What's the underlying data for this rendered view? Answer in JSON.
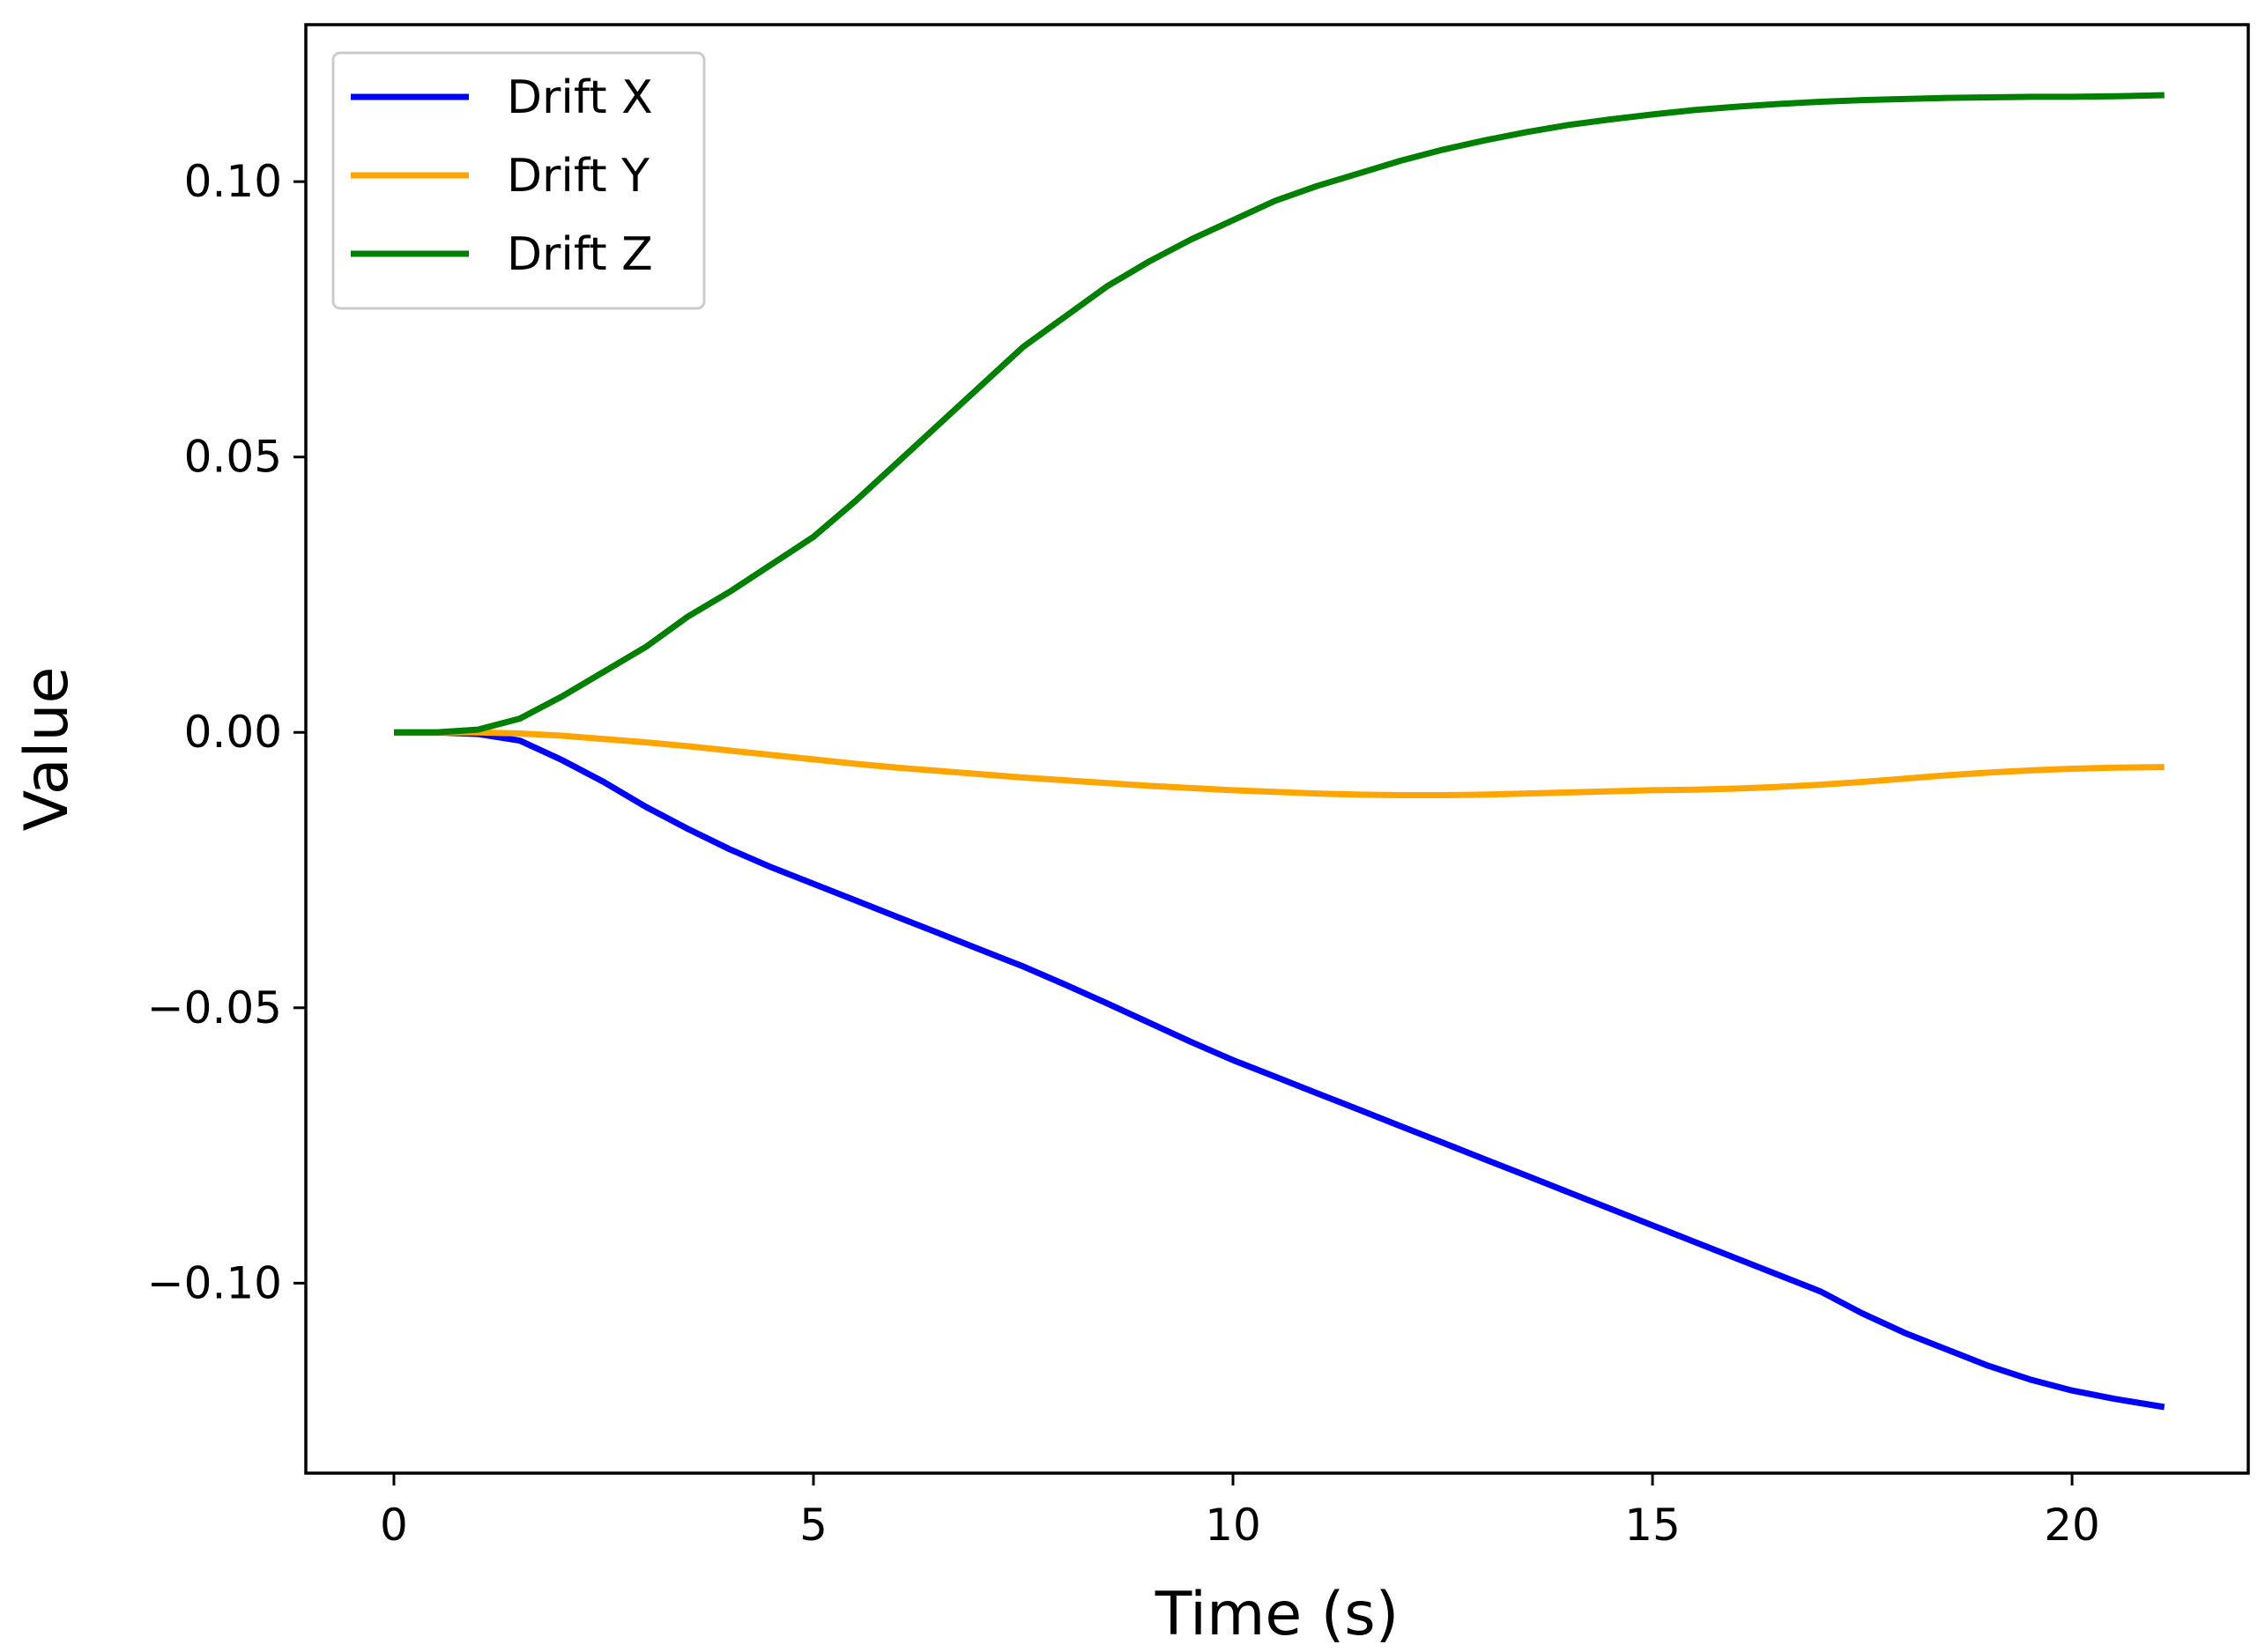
{
  "chart_data": {
    "type": "line",
    "title": "",
    "xlabel": "Time (s)",
    "ylabel": "Value",
    "xlim": [
      -1.05,
      22.1
    ],
    "ylim": [
      -0.1345,
      0.1285
    ],
    "grid": false,
    "legend_position": "top-left",
    "x_ticks": [
      0,
      5,
      10,
      15,
      20
    ],
    "x_tick_labels": [
      "0",
      "5",
      "10",
      "15",
      "20"
    ],
    "y_ticks": [
      -0.1,
      -0.05,
      0.0,
      0.05,
      0.1
    ],
    "y_tick_labels": [
      "−0.10",
      "−0.05",
      "0.00",
      "0.05",
      "0.10"
    ],
    "x": [
      0,
      0.5,
      1,
      1.5,
      2,
      2.5,
      3,
      3.5,
      4,
      4.5,
      5,
      5.5,
      6,
      6.5,
      7,
      7.5,
      8,
      8.5,
      9,
      9.5,
      10,
      10.5,
      11,
      11.5,
      12,
      12.5,
      13,
      13.5,
      14,
      14.5,
      15,
      15.5,
      16,
      16.5,
      17,
      17.5,
      18,
      18.5,
      19,
      19.5,
      20,
      20.5,
      21.1
    ],
    "series": [
      {
        "name": "Drift X",
        "color": "#0000ff",
        "values": [
          0,
          0,
          -0.0003,
          -0.0015,
          -0.005,
          -0.009,
          -0.0135,
          -0.0175,
          -0.0212,
          -0.0245,
          -0.0275,
          -0.0305,
          -0.0335,
          -0.0365,
          -0.0395,
          -0.0425,
          -0.0458,
          -0.0492,
          -0.0527,
          -0.0562,
          -0.0595,
          -0.0625,
          -0.0655,
          -0.0685,
          -0.0715,
          -0.0745,
          -0.0775,
          -0.0805,
          -0.0835,
          -0.0865,
          -0.0895,
          -0.0925,
          -0.0955,
          -0.0985,
          -0.1015,
          -0.1055,
          -0.109,
          -0.112,
          -0.115,
          -0.1175,
          -0.1195,
          -0.121,
          -0.1225
        ]
      },
      {
        "name": "Drift Y",
        "color": "#ffa500",
        "values": [
          0,
          0,
          0,
          -0.0002,
          -0.0006,
          -0.0012,
          -0.0018,
          -0.0025,
          -0.0033,
          -0.0041,
          -0.0049,
          -0.0057,
          -0.0064,
          -0.007,
          -0.0076,
          -0.0082,
          -0.0087,
          -0.0092,
          -0.0097,
          -0.0101,
          -0.0105,
          -0.0108,
          -0.0111,
          -0.0113,
          -0.0114,
          -0.0114,
          -0.0113,
          -0.0111,
          -0.0109,
          -0.0107,
          -0.0105,
          -0.0104,
          -0.0102,
          -0.0099,
          -0.0095,
          -0.009,
          -0.0084,
          -0.0078,
          -0.0073,
          -0.0069,
          -0.0066,
          -0.0064,
          -0.0063
        ]
      },
      {
        "name": "Drift Z",
        "color": "#008000",
        "values": [
          0,
          0,
          0.0005,
          0.0025,
          0.0065,
          0.011,
          0.0155,
          0.021,
          0.0255,
          0.0305,
          0.0355,
          0.042,
          0.049,
          0.056,
          0.063,
          0.07,
          0.0755,
          0.081,
          0.0855,
          0.0895,
          0.093,
          0.0965,
          0.0992,
          0.1015,
          0.1038,
          0.1058,
          0.1075,
          0.109,
          0.1103,
          0.1113,
          0.1122,
          0.113,
          0.1136,
          0.1141,
          0.1145,
          0.1148,
          0.115,
          0.1152,
          0.1153,
          0.1154,
          0.1154,
          0.1155,
          0.1157
        ]
      }
    ]
  }
}
